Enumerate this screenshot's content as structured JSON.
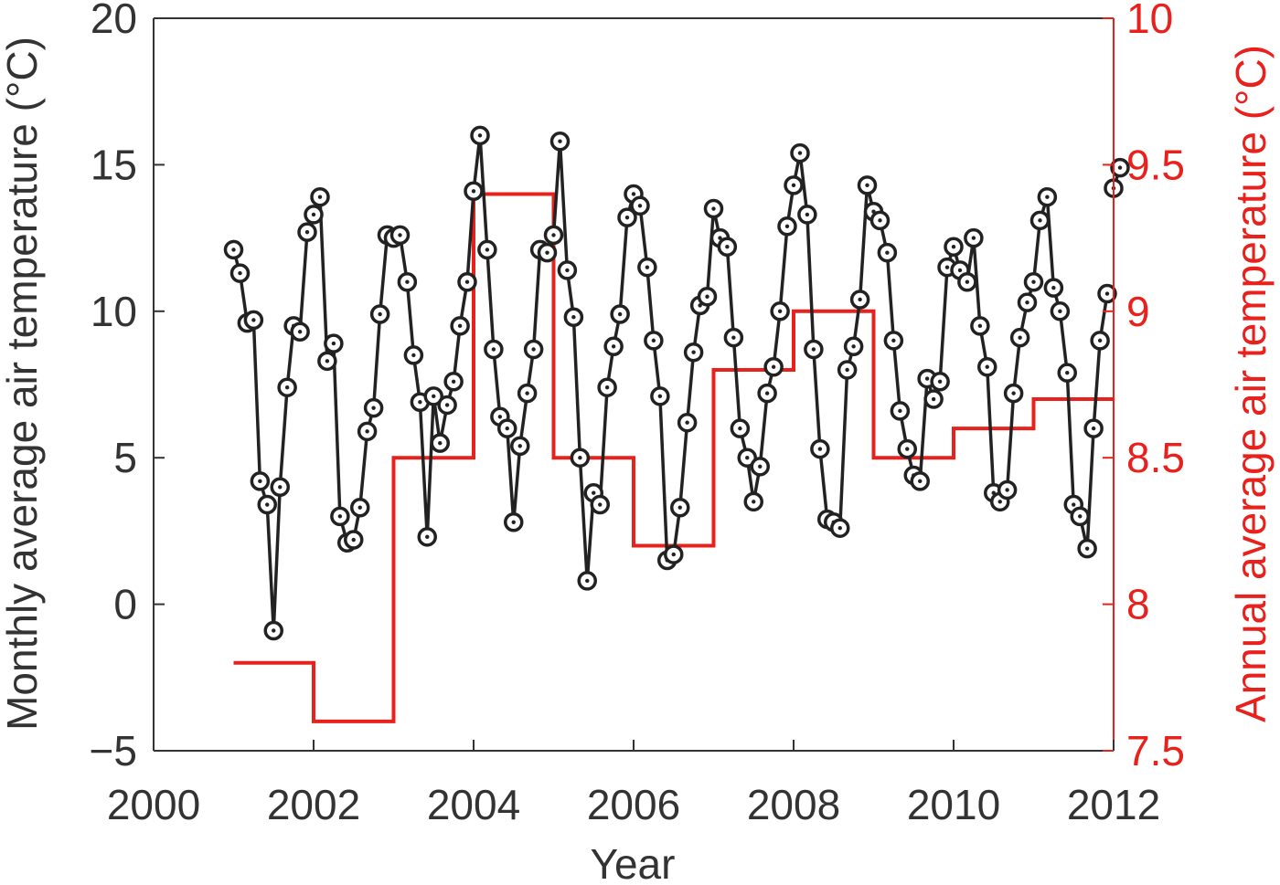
{
  "chart_data": {
    "type": "line",
    "title": "",
    "xlabel": "Year",
    "ylabel_left": "Monthly average air temperature (°C)",
    "ylabel_right": "Annual average air temperature (°C)",
    "xlim": [
      2000,
      2012
    ],
    "ylim_left": [
      -5,
      20
    ],
    "ylim_right": [
      7.5,
      10
    ],
    "xticks": [
      "2000",
      "2002",
      "2004",
      "2006",
      "2008",
      "2010",
      "2012"
    ],
    "yticks_left": [
      "−5",
      "0",
      "5",
      "10",
      "15",
      "20"
    ],
    "yticks_right": [
      "7.5",
      "8",
      "8.5",
      "9",
      "9.5",
      "10"
    ],
    "grid": false,
    "colors": {
      "monthly": "#222222",
      "annual": "#e8211d",
      "axis": "#333333"
    },
    "series": [
      {
        "axis": "left",
        "style": "line-with-circle-markers",
        "x": [
          2001.0,
          2001.08,
          2001.17,
          2001.25,
          2001.33,
          2001.42,
          2001.5,
          2001.58,
          2001.67,
          2001.75,
          2001.83,
          2001.92,
          2002.0,
          2002.08,
          2002.17,
          2002.25,
          2002.33,
          2002.42,
          2002.5,
          2002.58,
          2002.67,
          2002.75,
          2002.83,
          2002.92,
          2003.0,
          2003.08,
          2003.17,
          2003.25,
          2003.33,
          2003.42,
          2003.5,
          2003.58,
          2003.67,
          2003.75,
          2003.83,
          2003.92,
          2004.0,
          2004.08,
          2004.17,
          2004.25,
          2004.33,
          2004.42,
          2004.5,
          2004.58,
          2004.67,
          2004.75,
          2004.83,
          2004.92,
          2005.0,
          2005.08,
          2005.17,
          2005.25,
          2005.33,
          2005.42,
          2005.5,
          2005.58,
          2005.67,
          2005.75,
          2005.83,
          2005.92,
          2006.0,
          2006.08,
          2006.17,
          2006.25,
          2006.33,
          2006.42,
          2006.5,
          2006.58,
          2006.67,
          2006.75,
          2006.83,
          2006.92,
          2007.0,
          2007.08,
          2007.17,
          2007.25,
          2007.33,
          2007.42,
          2007.5,
          2007.58,
          2007.67,
          2007.75,
          2007.83,
          2007.92,
          2008.0,
          2008.08,
          2008.17,
          2008.25,
          2008.33,
          2008.42,
          2008.5,
          2008.58,
          2008.67,
          2008.75,
          2008.83,
          2008.92,
          2009.0,
          2009.08,
          2009.17,
          2009.25,
          2009.33,
          2009.42,
          2009.5,
          2009.58,
          2009.67,
          2009.75,
          2009.83,
          2009.92,
          2010.0,
          2010.08,
          2010.17,
          2010.25,
          2010.33,
          2010.42,
          2010.5,
          2010.58,
          2010.67,
          2010.75,
          2010.83,
          2010.92,
          2011.0,
          2011.08,
          2011.17,
          2011.25,
          2011.33,
          2011.42,
          2011.5,
          2011.58,
          2011.67,
          2011.75,
          2011.83,
          2011.92
        ],
        "y": [
          12.1,
          11.3,
          9.6,
          9.7,
          4.2,
          3.4,
          -0.9,
          4.0,
          7.4,
          9.5,
          9.3,
          12.7,
          13.3,
          13.9,
          8.3,
          8.9,
          3.0,
          2.1,
          2.2,
          3.3,
          5.9,
          6.7,
          9.9,
          12.6,
          12.5,
          12.6,
          11.0,
          8.5,
          6.9,
          2.3,
          7.1,
          5.5,
          6.8,
          7.6,
          9.5,
          11.0,
          14.1,
          16.0,
          12.1,
          8.7,
          6.4,
          6.0,
          2.8,
          5.4,
          7.2,
          8.7,
          12.1,
          12.0,
          12.6,
          15.8,
          11.4,
          9.8,
          5.0,
          0.8,
          3.8,
          3.4,
          7.4,
          8.8,
          9.9,
          13.2,
          14.0,
          13.6,
          11.5,
          9.0,
          7.1,
          1.5,
          1.7,
          3.3,
          6.2,
          8.6,
          10.2,
          10.5,
          13.5,
          12.5,
          12.2,
          9.1,
          6.0,
          5.0,
          3.5,
          4.7,
          7.2,
          8.1,
          10.0,
          12.9,
          14.3,
          15.4,
          13.3,
          8.7,
          5.3,
          2.9,
          2.8,
          2.6,
          8.0,
          8.8,
          10.4,
          14.3,
          13.4,
          13.1,
          12.0,
          9.0,
          6.6,
          5.3,
          4.4,
          4.2,
          7.7,
          7.0,
          7.6,
          11.5,
          12.2,
          11.4,
          11.0,
          12.5,
          9.5,
          8.1,
          3.8,
          3.5,
          3.9,
          7.2,
          9.1,
          10.3,
          11.0,
          13.1,
          13.9,
          10.8,
          10.0,
          7.9,
          3.4,
          3.0,
          1.9,
          6.0,
          9.0,
          10.6
        ]
      },
      {
        "axis": "left",
        "style": "line-with-circle-markers",
        "x": [
          2012.0,
          2012.08
        ],
        "y": [
          14.2,
          14.9
        ]
      },
      {
        "axis": "right",
        "style": "step",
        "x": [
          2001,
          2002,
          2003,
          2004,
          2005,
          2006,
          2007,
          2008,
          2009,
          2010,
          2011,
          2012
        ],
        "y": [
          7.8,
          7.6,
          8.5,
          9.4,
          8.5,
          8.2,
          8.8,
          9.0,
          8.5,
          8.6,
          8.7,
          8.7
        ]
      }
    ]
  }
}
